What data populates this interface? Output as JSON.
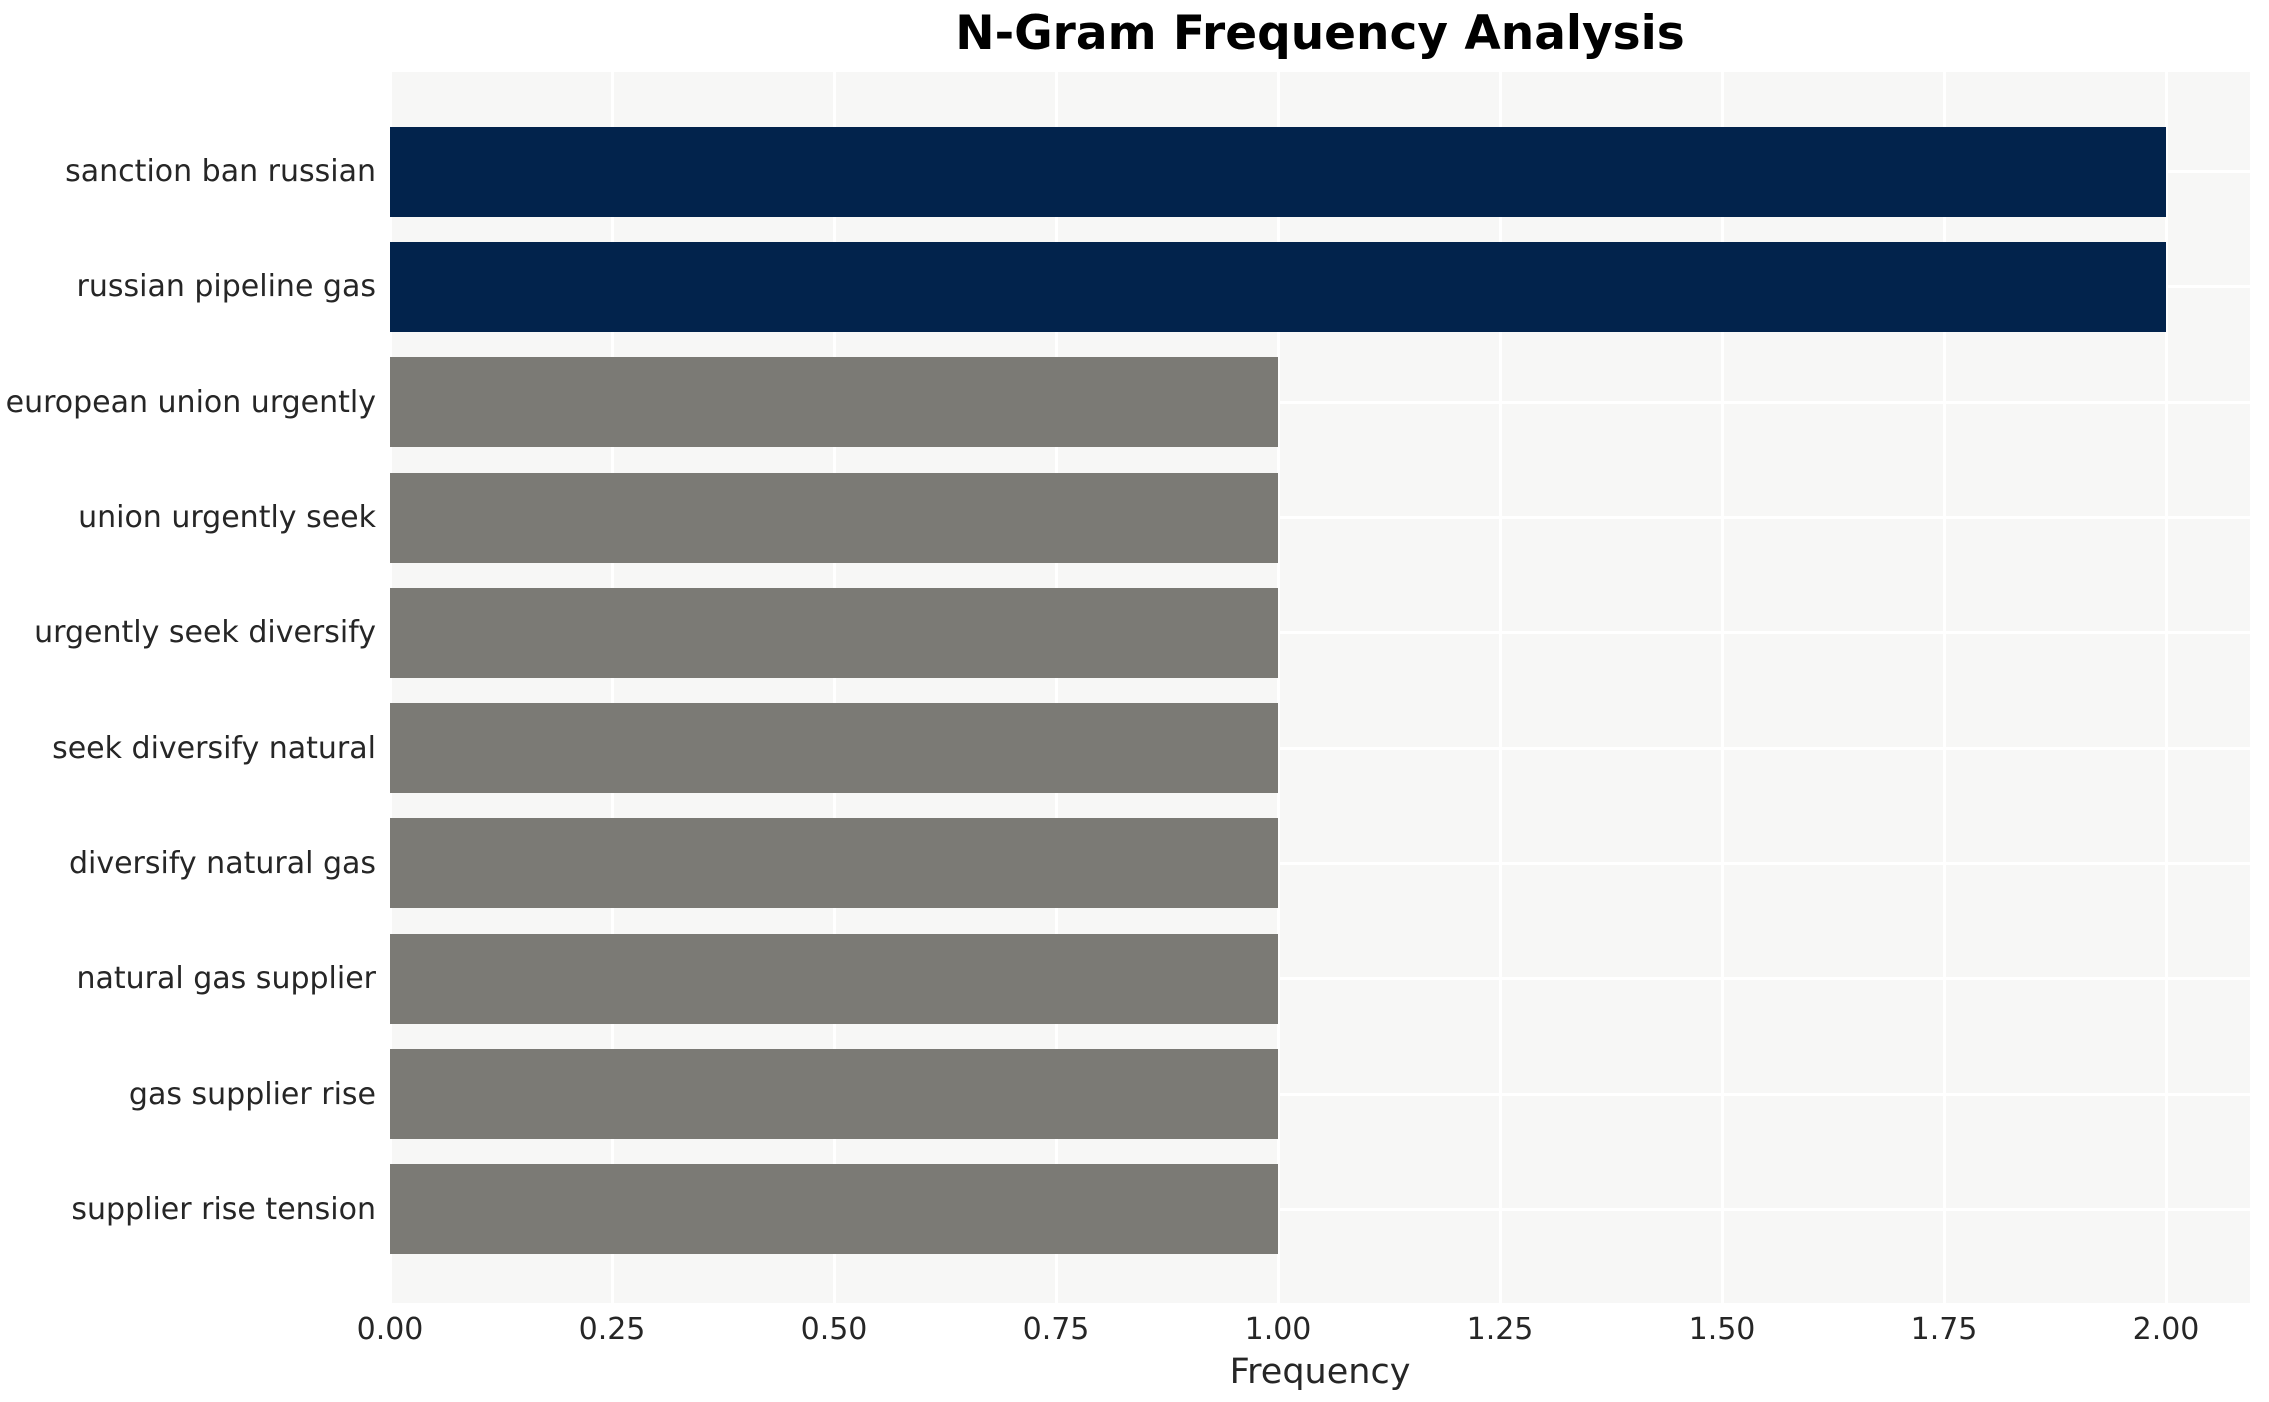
{
  "chart": {
    "title": "N-Gram Frequency Analysis",
    "xlabel": "Frequency"
  },
  "chart_data": {
    "type": "bar",
    "orientation": "horizontal",
    "title": "N-Gram Frequency Analysis",
    "xlabel": "Frequency",
    "ylabel": "",
    "categories": [
      "sanction ban russian",
      "russian pipeline gas",
      "european union urgently",
      "union urgently seek",
      "urgently seek diversify",
      "seek diversify natural",
      "diversify natural gas",
      "natural gas supplier",
      "gas supplier rise",
      "supplier rise tension"
    ],
    "values": [
      2,
      2,
      1,
      1,
      1,
      1,
      1,
      1,
      1,
      1
    ],
    "bar_colors": [
      "#02234c",
      "#02234c",
      "#7b7a75",
      "#7b7a75",
      "#7b7a75",
      "#7b7a75",
      "#7b7a75",
      "#7b7a75",
      "#7b7a75",
      "#7b7a75"
    ],
    "x_tick_values": [
      0,
      0.25,
      0.5,
      0.75,
      1.0,
      1.25,
      1.5,
      1.75,
      2.0
    ],
    "x_tick_labels": [
      "0.00",
      "0.25",
      "0.50",
      "0.75",
      "1.00",
      "1.25",
      "1.50",
      "1.75",
      "2.00"
    ],
    "xlim": [
      0,
      2.09
    ],
    "grid": true,
    "legend_position": "none",
    "colors": {
      "highlight_bar": "#02234c",
      "default_bar": "#7b7a75",
      "plot_background": "#f7f7f6",
      "gridline": "#ffffff",
      "tick_text": "#262626",
      "title_text": "#000000"
    }
  }
}
